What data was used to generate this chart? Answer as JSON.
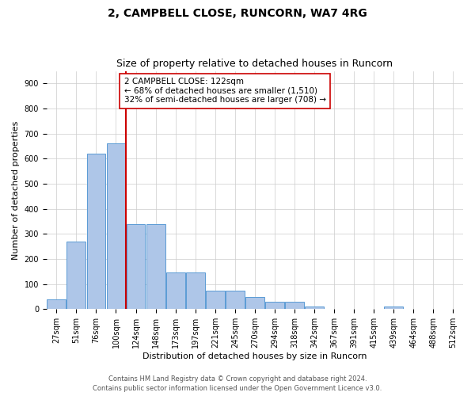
{
  "title_line1": "2, CAMPBELL CLOSE, RUNCORN, WA7 4RG",
  "title_line2": "Size of property relative to detached houses in Runcorn",
  "xlabel": "Distribution of detached houses by size in Runcorn",
  "ylabel": "Number of detached properties",
  "bin_labels": [
    "27sqm",
    "51sqm",
    "76sqm",
    "100sqm",
    "124sqm",
    "148sqm",
    "173sqm",
    "197sqm",
    "221sqm",
    "245sqm",
    "270sqm",
    "294sqm",
    "318sqm",
    "342sqm",
    "367sqm",
    "391sqm",
    "415sqm",
    "439sqm",
    "464sqm",
    "488sqm",
    "512sqm"
  ],
  "bar_heights": [
    40,
    270,
    620,
    660,
    340,
    340,
    145,
    145,
    75,
    75,
    50,
    30,
    30,
    10,
    0,
    0,
    0,
    10,
    0,
    0,
    0
  ],
  "bar_color": "#aec6e8",
  "bar_edge_color": "#5b9bd5",
  "vline_color": "#cc0000",
  "vline_bin_index": 3.5,
  "annotation_text": "2 CAMPBELL CLOSE: 122sqm\n← 68% of detached houses are smaller (1,510)\n32% of semi-detached houses are larger (708) →",
  "annotation_box_color": "#ffffff",
  "annotation_box_edge": "#cc0000",
  "ylim": [
    0,
    950
  ],
  "yticks": [
    0,
    100,
    200,
    300,
    400,
    500,
    600,
    700,
    800,
    900
  ],
  "footer_line1": "Contains HM Land Registry data © Crown copyright and database right 2024.",
  "footer_line2": "Contains public sector information licensed under the Open Government Licence v3.0.",
  "background_color": "#ffffff",
  "grid_color": "#cccccc",
  "title_fontsize": 10,
  "subtitle_fontsize": 9,
  "axis_label_fontsize": 8,
  "tick_fontsize": 7,
  "annotation_fontsize": 7.5,
  "footer_fontsize": 6
}
